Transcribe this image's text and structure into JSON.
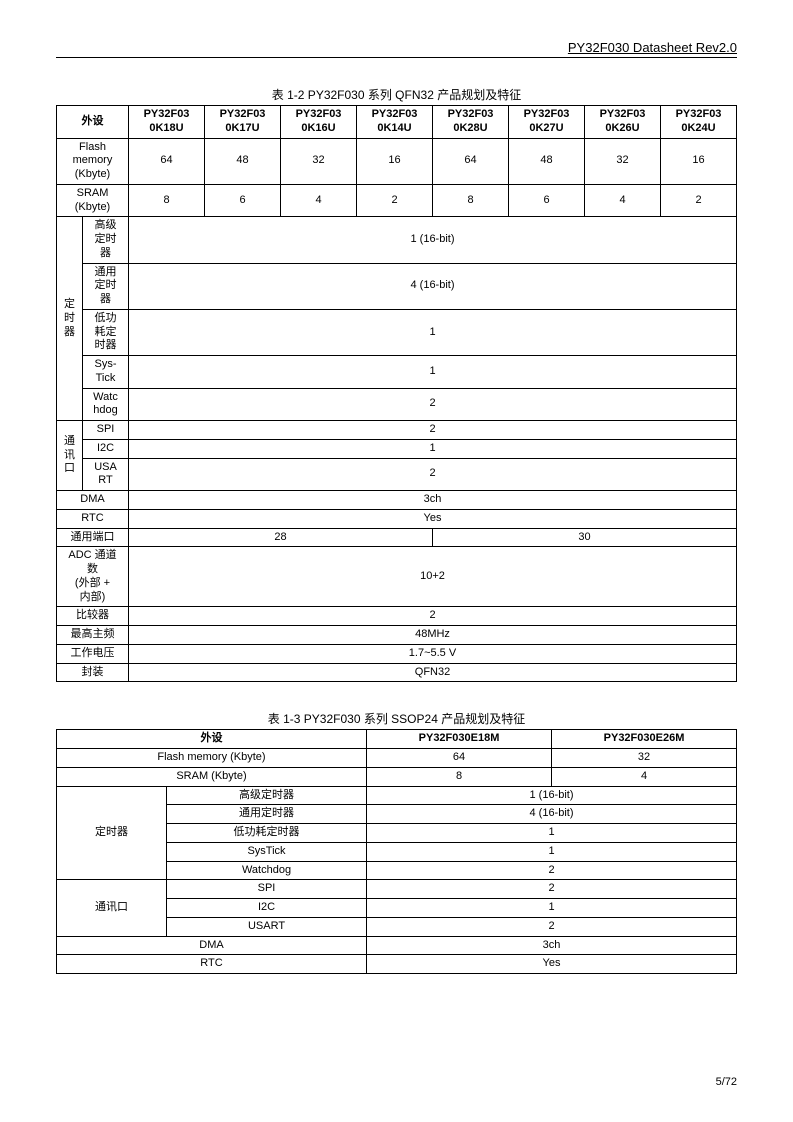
{
  "header": {
    "doc_title": "PY32F030 Datasheet Rev2.0"
  },
  "footer": {
    "page": "5/72"
  },
  "table1": {
    "caption": "表 1-2 PY32F030 系列 QFN32 产品规划及特征",
    "col_headers": [
      "外设",
      "PY32F03\n0K18U",
      "PY32F03\n0K17U",
      "PY32F03\n0K16U",
      "PY32F03\n0K14U",
      "PY32F03\n0K28U",
      "PY32F03\n0K27U",
      "PY32F03\n0K26U",
      "PY32F03\n0K24U"
    ],
    "flash_label": "Flash\nmemory\n(Kbyte)",
    "flash": [
      "64",
      "48",
      "32",
      "16",
      "64",
      "48",
      "32",
      "16"
    ],
    "sram_label": "SRAM\n(Kbyte)",
    "sram": [
      "8",
      "6",
      "4",
      "2",
      "8",
      "6",
      "4",
      "2"
    ],
    "timer_group": "定\n时\n器",
    "adv_timer_label": "高级\n定时\n器",
    "adv_timer_val": "1 (16-bit)",
    "gen_timer_label": "通用\n定时\n器",
    "gen_timer_val": "4 (16-bit)",
    "lp_timer_label": "低功\n耗定\n时器",
    "lp_timer_val": "1",
    "systick_label": "Sys-\nTick",
    "systick_val": "1",
    "wdog_label": "Watc\nhdog",
    "wdog_val": "2",
    "comm_group": "通\n讯\n口",
    "spi_label": "SPI",
    "spi_val": "2",
    "i2c_label": "I2C",
    "i2c_val": "1",
    "usart_label": "USA\nRT",
    "usart_val": "2",
    "dma_label": "DMA",
    "dma_val": "3ch",
    "rtc_label": "RTC",
    "rtc_val": "Yes",
    "gpio_label": "通用端口",
    "gpio_left": "28",
    "gpio_right": "30",
    "adc_label": "ADC 通道\n数\n(外部 +\n内部)",
    "adc_val": "10+2",
    "cmp_label": "比较器",
    "cmp_val": "2",
    "freq_label": "最高主频",
    "freq_val": "48MHz",
    "volt_label": "工作电压",
    "volt_val": "1.7~5.5 V",
    "pkg_label": "封装",
    "pkg_val": "QFN32"
  },
  "table2": {
    "caption": "表 1-3 PY32F030 系列 SSOP24 产品规划及特征",
    "col_headers": [
      "外设",
      "PY32F030E18M",
      "PY32F030E26M"
    ],
    "flash_label": "Flash memory (Kbyte)",
    "flash": [
      "64",
      "32"
    ],
    "sram_label": "SRAM (Kbyte)",
    "sram": [
      "8",
      "4"
    ],
    "timer_group": "定时器",
    "adv_timer_label": "高级定时器",
    "adv_timer_val": "1 (16-bit)",
    "gen_timer_label": "通用定时器",
    "gen_timer_val": "4 (16-bit)",
    "lp_timer_label": "低功耗定时器",
    "lp_timer_val": "1",
    "systick_label": "SysTick",
    "systick_val": "1",
    "wdog_label": "Watchdog",
    "wdog_val": "2",
    "comm_group": "通讯口",
    "spi_label": "SPI",
    "spi_val": "2",
    "i2c_label": "I2C",
    "i2c_val": "1",
    "usart_label": "USART",
    "usart_val": "2",
    "dma_label": "DMA",
    "dma_val": "3ch",
    "rtc_label": "RTC",
    "rtc_val": "Yes"
  }
}
